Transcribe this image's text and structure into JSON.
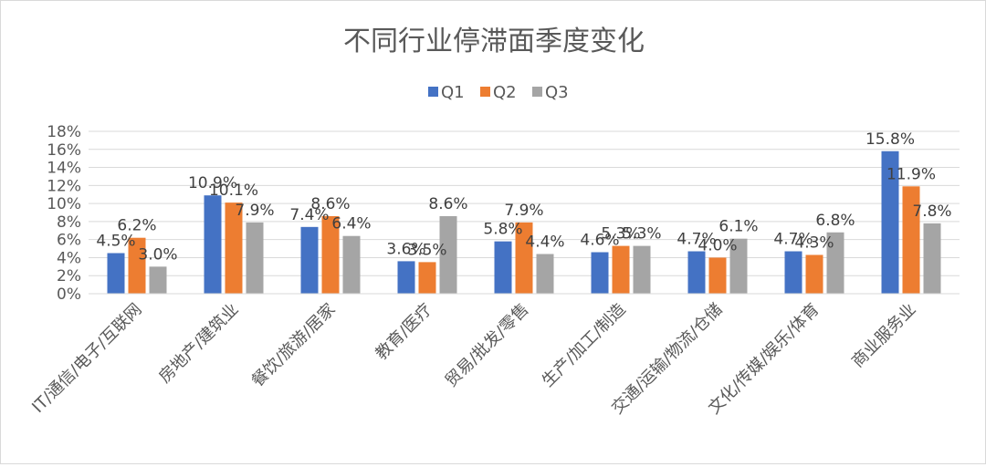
{
  "chart_data": {
    "type": "bar",
    "title": "不同行业停滞面季度变化",
    "categories": [
      "IT/通信/电子/互联网",
      "房地产/建筑业",
      "餐饮/旅游/居家",
      "教育/医疗",
      "贸易/批发/零售",
      "生产/加工/制造",
      "交通/运输/物流/仓储",
      "文化/传媒/娱乐/体育",
      "商业服务业"
    ],
    "series": [
      {
        "name": "Q1",
        "color": "#4472C4",
        "values": [
          4.5,
          10.9,
          7.4,
          3.6,
          5.8,
          4.6,
          4.7,
          4.7,
          15.8
        ]
      },
      {
        "name": "Q2",
        "color": "#ED7D31",
        "values": [
          6.2,
          10.1,
          8.6,
          3.5,
          7.9,
          5.3,
          4.0,
          4.3,
          11.9
        ]
      },
      {
        "name": "Q3",
        "color": "#A5A5A5",
        "values": [
          3.0,
          7.9,
          6.4,
          8.6,
          4.4,
          5.3,
          6.1,
          6.8,
          7.8
        ]
      }
    ],
    "value_labels": [
      [
        "4.5%",
        "10.9%",
        "7.4%",
        "3.6%",
        "5.8%",
        "4.6%",
        "4.7%",
        "4.7%",
        "15.8%"
      ],
      [
        "6.2%",
        "10.1%",
        "8.6%",
        "3.5%",
        "7.9%",
        "5.3%",
        "4.0%",
        "4.3%",
        "11.9%"
      ],
      [
        "3.0%",
        "7.9%",
        "6.4%",
        "8.6%",
        "4.4%",
        "5.3%",
        "6.1%",
        "6.8%",
        "7.8%"
      ]
    ],
    "yticks": [
      "0%",
      "2%",
      "4%",
      "6%",
      "8%",
      "10%",
      "12%",
      "14%",
      "16%",
      "18%"
    ],
    "ylim": [
      0,
      18
    ],
    "grid": true,
    "legend": "top-center"
  }
}
